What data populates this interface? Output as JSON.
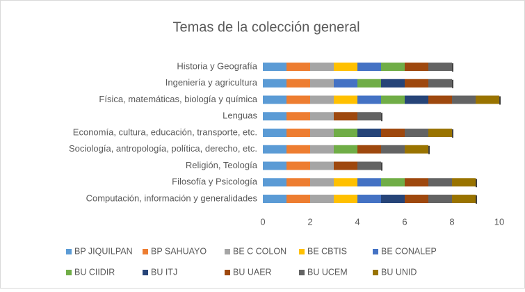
{
  "chart_data": {
    "type": "stacked_barh",
    "title": "Temas de la colección general",
    "categories": [
      "Computación, información y generalidades",
      "Filosofía y Psicología",
      "Religión, Teología",
      "Sociología, antropología, política, derecho, etc.",
      "Economía, cultura, educación, transporte, etc.",
      "Lenguas",
      "Física, matemáticas, biología y química",
      "Ingeniería y agricultura",
      "Historia y Geografía"
    ],
    "series": [
      {
        "name": "BP JIQUILPAN",
        "color": "#5b9bd5",
        "values": [
          1,
          1,
          1,
          1,
          1,
          1,
          1,
          1,
          1
        ]
      },
      {
        "name": "BP SAHUAYO",
        "color": "#ed7d31",
        "values": [
          1,
          1,
          1,
          1,
          1,
          1,
          1,
          1,
          1
        ]
      },
      {
        "name": "BE C COLON",
        "color": "#a5a5a5",
        "values": [
          1,
          1,
          1,
          1,
          1,
          1,
          1,
          1,
          1
        ]
      },
      {
        "name": "BE CBTIS",
        "color": "#ffc000",
        "values": [
          1,
          1,
          0,
          0,
          0,
          0,
          1,
          0,
          1
        ]
      },
      {
        "name": "BE CONALEP",
        "color": "#4472c4",
        "values": [
          1,
          1,
          0,
          0,
          0,
          0,
          1,
          1,
          1
        ]
      },
      {
        "name": "BU CIIDIR",
        "color": "#70ad47",
        "values": [
          0,
          1,
          0,
          1,
          1,
          0,
          1,
          1,
          1
        ]
      },
      {
        "name": "BU ITJ",
        "color": "#264478",
        "values": [
          1,
          0,
          0,
          0,
          1,
          0,
          1,
          1,
          0
        ]
      },
      {
        "name": "BU UAER",
        "color": "#9e480e",
        "values": [
          1,
          1,
          1,
          1,
          1,
          1,
          1,
          1,
          1
        ]
      },
      {
        "name": "BU UCEM",
        "color": "#636363",
        "values": [
          1,
          1,
          1,
          1,
          1,
          1,
          1,
          1,
          1
        ]
      },
      {
        "name": "BU UNID",
        "color": "#997300",
        "values": [
          1,
          1,
          0,
          1,
          1,
          0,
          1,
          0,
          0
        ]
      }
    ],
    "xlim": [
      0,
      10
    ],
    "xticks": [
      0,
      2,
      4,
      6,
      8,
      10
    ],
    "grid": false,
    "legend": "bottom"
  }
}
